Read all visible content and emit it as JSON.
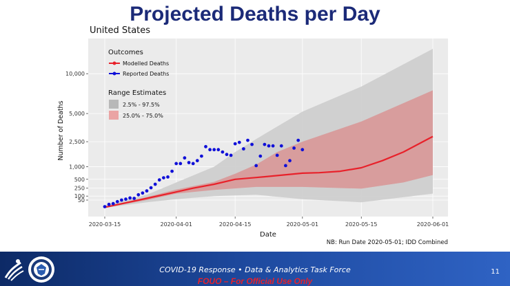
{
  "slide": {
    "title": "Projected Deaths per Day",
    "subtitle": "United States",
    "note": "NB: Run Date 2020-05-01; IDD Combined"
  },
  "footer": {
    "line": "COVID-19 Response   •   Data & Analytics Task Force",
    "fouo": "FOUO – For Official Use Only",
    "page_number": "11"
  },
  "colors": {
    "title": "#1b2a78",
    "modelled": "#e8212a",
    "reported": "#1010d8",
    "band_outer": "#cfcfcf",
    "band_inner": "#e6a0a0",
    "panel": "#ebebeb"
  },
  "chart_data": {
    "type": "line",
    "xlabel": "Date",
    "ylabel": "Number of Deaths",
    "y_scale": "sqrt",
    "ylim": [
      0,
      14600
    ],
    "x_ticks": [
      "2020-03-15",
      "2020-04-01",
      "2020-04-15",
      "2020-05-01",
      "2020-05-15",
      "2020-06-01"
    ],
    "y_ticks": [
      {
        "value": 50,
        "label": "50"
      },
      {
        "value": 100,
        "label": "100"
      },
      {
        "value": 250,
        "label": "250"
      },
      {
        "value": 500,
        "label": "500"
      },
      {
        "value": 1000,
        "label": "1,000"
      },
      {
        "value": 2500,
        "label": "2,500"
      },
      {
        "value": 5000,
        "label": "5,000"
      },
      {
        "value": 10000,
        "label": "10,000"
      }
    ],
    "legend": {
      "placement": "top-left",
      "outcomes_title": "Outcomes",
      "outcomes": [
        {
          "label": "Modelled Deaths",
          "color": "#e8212a"
        },
        {
          "label": "Reported Deaths",
          "color": "#1010d8"
        }
      ],
      "range_title": "Range Estimates",
      "ranges": [
        {
          "label": "2.5% - 97.5%",
          "color": "#b8b8b8"
        },
        {
          "label": "25.0% - 75.0%",
          "color": "#eaa4a4"
        }
      ]
    },
    "series": [
      {
        "name": "Modelled Deaths",
        "points": [
          [
            "2020-03-15",
            3
          ],
          [
            "2020-03-20",
            25
          ],
          [
            "2020-03-25",
            70
          ],
          [
            "2020-04-01",
            170
          ],
          [
            "2020-04-05",
            250
          ],
          [
            "2020-04-10",
            350
          ],
          [
            "2020-04-15",
            500
          ],
          [
            "2020-04-20",
            560
          ],
          [
            "2020-04-25",
            630
          ],
          [
            "2020-05-01",
            720
          ],
          [
            "2020-05-05",
            740
          ],
          [
            "2020-05-10",
            800
          ],
          [
            "2020-05-15",
            950
          ],
          [
            "2020-05-20",
            1300
          ],
          [
            "2020-05-25",
            1800
          ],
          [
            "2020-06-01",
            2900
          ]
        ]
      },
      {
        "name": "Reported Deaths",
        "points": [
          [
            "2020-03-15",
            5
          ],
          [
            "2020-03-16",
            15
          ],
          [
            "2020-03-17",
            20
          ],
          [
            "2020-03-18",
            35
          ],
          [
            "2020-03-19",
            50
          ],
          [
            "2020-03-20",
            60
          ],
          [
            "2020-03-21",
            75
          ],
          [
            "2020-03-22",
            70
          ],
          [
            "2020-03-23",
            120
          ],
          [
            "2020-03-24",
            150
          ],
          [
            "2020-03-25",
            190
          ],
          [
            "2020-03-26",
            260
          ],
          [
            "2020-03-27",
            350
          ],
          [
            "2020-03-28",
            480
          ],
          [
            "2020-03-29",
            550
          ],
          [
            "2020-03-30",
            580
          ],
          [
            "2020-03-31",
            800
          ],
          [
            "2020-04-01",
            1150
          ],
          [
            "2020-04-02",
            1150
          ],
          [
            "2020-04-03",
            1450
          ],
          [
            "2020-04-04",
            1200
          ],
          [
            "2020-04-05",
            1150
          ],
          [
            "2020-04-06",
            1300
          ],
          [
            "2020-04-07",
            1550
          ],
          [
            "2020-04-08",
            2150
          ],
          [
            "2020-04-09",
            1950
          ],
          [
            "2020-04-10",
            1950
          ],
          [
            "2020-04-11",
            1950
          ],
          [
            "2020-04-12",
            1800
          ],
          [
            "2020-04-13",
            1650
          ],
          [
            "2020-04-14",
            1600
          ],
          [
            "2020-04-15",
            2350
          ],
          [
            "2020-04-16",
            2450
          ],
          [
            "2020-04-17",
            2000
          ],
          [
            "2020-04-18",
            2600
          ],
          [
            "2020-04-19",
            2300
          ],
          [
            "2020-04-20",
            1050
          ],
          [
            "2020-04-21",
            1550
          ],
          [
            "2020-04-22",
            2300
          ],
          [
            "2020-04-23",
            2200
          ],
          [
            "2020-04-24",
            2200
          ],
          [
            "2020-04-25",
            1600
          ],
          [
            "2020-04-26",
            2200
          ],
          [
            "2020-04-27",
            1050
          ],
          [
            "2020-04-28",
            1300
          ],
          [
            "2020-04-29",
            2050
          ],
          [
            "2020-04-30",
            2600
          ],
          [
            "2020-05-01",
            1950
          ]
        ]
      },
      {
        "name": "2.5% - 97.5%",
        "upper": [
          [
            "2020-03-15",
            10
          ],
          [
            "2020-03-25",
            120
          ],
          [
            "2020-04-01",
            400
          ],
          [
            "2020-04-10",
            1000
          ],
          [
            "2020-04-15",
            1800
          ],
          [
            "2020-04-20",
            2700
          ],
          [
            "2020-05-01",
            5200
          ],
          [
            "2020-05-15",
            8200
          ],
          [
            "2020-06-01",
            14000
          ]
        ],
        "lower": [
          [
            "2020-03-15",
            2
          ],
          [
            "2020-03-25",
            30
          ],
          [
            "2020-04-01",
            60
          ],
          [
            "2020-04-10",
            100
          ],
          [
            "2020-04-20",
            120
          ],
          [
            "2020-05-01",
            60
          ],
          [
            "2020-05-15",
            30
          ],
          [
            "2020-06-01",
            140
          ]
        ]
      },
      {
        "name": "25.0% - 75.0%",
        "upper": [
          [
            "2020-03-15",
            5
          ],
          [
            "2020-03-25",
            85
          ],
          [
            "2020-04-01",
            220
          ],
          [
            "2020-04-10",
            420
          ],
          [
            "2020-04-15",
            700
          ],
          [
            "2020-04-20",
            1100
          ],
          [
            "2020-04-25",
            1800
          ],
          [
            "2020-05-01",
            2500
          ],
          [
            "2020-05-15",
            4200
          ],
          [
            "2020-06-01",
            7700
          ]
        ],
        "lower": [
          [
            "2020-03-15",
            2
          ],
          [
            "2020-03-25",
            50
          ],
          [
            "2020-04-01",
            140
          ],
          [
            "2020-04-10",
            210
          ],
          [
            "2020-04-20",
            280
          ],
          [
            "2020-05-01",
            280
          ],
          [
            "2020-05-15",
            240
          ],
          [
            "2020-05-25",
            400
          ],
          [
            "2020-06-01",
            650
          ]
        ]
      }
    ]
  }
}
